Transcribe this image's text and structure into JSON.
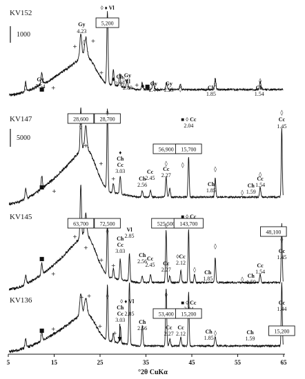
{
  "chart_data": {
    "type": "line",
    "xlabel": "°2θ CuKα",
    "xlim": [
      5,
      65
    ],
    "xticks": [
      "5",
      "15",
      "25",
      "35",
      "45",
      "55",
      "65"
    ],
    "legend_markers": [
      "◊",
      "♦",
      "■",
      "+"
    ],
    "scale_bars": [
      {
        "label": "1000"
      },
      {
        "label": "5000"
      }
    ],
    "patterns": [
      {
        "name": "KV152",
        "peaks": [
          {
            "x": 8.8,
            "h": 14,
            "w": 0.22
          },
          {
            "x": 12.3,
            "h": 18,
            "w": 0.22
          },
          {
            "x": 20.8,
            "h": 34,
            "w": 0.3
          },
          {
            "x": 21.9,
            "h": 26,
            "w": 0.35
          },
          {
            "x": 26.6,
            "h": 106,
            "w": 0.2
          },
          {
            "x": 27.9,
            "h": 22,
            "w": 0.22
          },
          {
            "x": 29.3,
            "h": 18,
            "w": 0.22
          },
          {
            "x": 30.9,
            "h": 12,
            "w": 0.22
          },
          {
            "x": 34.2,
            "h": 10,
            "w": 0.22
          },
          {
            "x": 36.6,
            "h": 12,
            "w": 0.22
          },
          {
            "x": 39.5,
            "h": 10,
            "w": 0.22
          },
          {
            "x": 42.5,
            "h": 8,
            "w": 0.22
          },
          {
            "x": 50.1,
            "h": 16,
            "w": 0.2
          },
          {
            "x": 59.9,
            "h": 12,
            "w": 0.2
          }
        ],
        "annotations": [
          {
            "text": "◊ ♦ Vl",
            "x": 26.6
          },
          {
            "text": "Gy",
            "x": 21.0
          },
          {
            "text": "4.23",
            "x": 21.0
          },
          {
            "text": "Gy",
            "x": 12.0
          },
          {
            "text": "7.54",
            "x": 12.0
          },
          {
            "text": "Ch",
            "x": 29.3
          },
          {
            "text": "2.99",
            "x": 29.3
          },
          {
            "text": "Gy",
            "x": 31.0
          },
          {
            "text": "Vl",
            "x": 31.0
          },
          {
            "text": "2.89",
            "x": 31.0
          },
          {
            "text": "Gy",
            "x": 36.7
          },
          {
            "text": "2.44",
            "x": 36.7
          },
          {
            "text": "Gy",
            "x": 40.0
          },
          {
            "text": "2.23",
            "x": 40.0
          },
          {
            "text": "Ch",
            "x": 49.2
          },
          {
            "text": "1.85",
            "x": 49.2
          },
          {
            "text": "Ch",
            "x": 59.7
          },
          {
            "text": "1.54",
            "x": 59.7
          }
        ],
        "boxed_counts": [
          {
            "text": "5,200",
            "x": 26.6
          }
        ]
      },
      {
        "name": "KV147",
        "peaks": [
          {
            "x": 8.8,
            "h": 14,
            "w": 0.22
          },
          {
            "x": 12.3,
            "h": 18,
            "w": 0.22
          },
          {
            "x": 20.8,
            "h": 62,
            "w": 0.2
          },
          {
            "x": 21.9,
            "h": 30,
            "w": 0.3
          },
          {
            "x": 26.6,
            "h": 118,
            "w": 0.18
          },
          {
            "x": 27.9,
            "h": 14,
            "w": 0.2
          },
          {
            "x": 29.4,
            "h": 26,
            "w": 0.22
          },
          {
            "x": 34.2,
            "h": 9,
            "w": 0.2
          },
          {
            "x": 36.0,
            "h": 10,
            "w": 0.2
          },
          {
            "x": 39.4,
            "h": 30,
            "w": 0.2
          },
          {
            "x": 40.2,
            "h": 12,
            "w": 0.2
          },
          {
            "x": 44.3,
            "h": 58,
            "w": 0.18
          },
          {
            "x": 50.1,
            "h": 28,
            "w": 0.18
          },
          {
            "x": 59.9,
            "h": 14,
            "w": 0.2
          },
          {
            "x": 64.6,
            "h": 100,
            "w": 0.16
          }
        ],
        "annotations": [
          {
            "text": "♦",
            "x": 29.4
          },
          {
            "text": "Ch",
            "x": 29.4
          },
          {
            "text": "Cc",
            "x": 29.4
          },
          {
            "text": "3.03",
            "x": 29.4
          },
          {
            "text": "Ch",
            "x": 34.2
          },
          {
            "text": "2.56",
            "x": 34.2
          },
          {
            "text": "Cc",
            "x": 35.9
          },
          {
            "text": "2.45",
            "x": 35.9
          },
          {
            "text": "Cc",
            "x": 39.4
          },
          {
            "text": "2.27",
            "x": 39.4
          },
          {
            "text": "■ ◊ Cc",
            "x": 44.3
          },
          {
            "text": "2.04",
            "x": 44.3
          },
          {
            "text": "Ch",
            "x": 49.2
          },
          {
            "text": "1.85",
            "x": 49.2
          },
          {
            "text": "Ch",
            "x": 57.9
          },
          {
            "text": "1.59",
            "x": 57.9
          },
          {
            "text": "Cc",
            "x": 59.9
          },
          {
            "text": "1.54",
            "x": 59.9
          },
          {
            "text": "Cc",
            "x": 64.6
          },
          {
            "text": "1.45",
            "x": 64.6
          }
        ],
        "boxed_counts": [
          {
            "text": "28,600",
            "x": 20.8
          },
          {
            "text": "28,700",
            "x": 26.6
          },
          {
            "text": "56,900",
            "x": 39.4
          },
          {
            "text": "15,700",
            "x": 44.3
          }
        ]
      },
      {
        "name": "KV145",
        "peaks": [
          {
            "x": 8.8,
            "h": 14,
            "w": 0.22
          },
          {
            "x": 12.3,
            "h": 16,
            "w": 0.22
          },
          {
            "x": 20.8,
            "h": 76,
            "w": 0.2
          },
          {
            "x": 21.9,
            "h": 28,
            "w": 0.3
          },
          {
            "x": 26.6,
            "h": 78,
            "w": 0.18
          },
          {
            "x": 27.9,
            "h": 14,
            "w": 0.2
          },
          {
            "x": 29.4,
            "h": 30,
            "w": 0.2
          },
          {
            "x": 31.4,
            "h": 40,
            "w": 0.18
          },
          {
            "x": 34.2,
            "h": 10,
            "w": 0.2
          },
          {
            "x": 36.0,
            "h": 12,
            "w": 0.2
          },
          {
            "x": 39.4,
            "h": 76,
            "w": 0.18
          },
          {
            "x": 40.2,
            "h": 10,
            "w": 0.2
          },
          {
            "x": 42.6,
            "h": 18,
            "w": 0.2
          },
          {
            "x": 44.3,
            "h": 78,
            "w": 0.16
          },
          {
            "x": 45.6,
            "h": 12,
            "w": 0.2
          },
          {
            "x": 50.1,
            "h": 36,
            "w": 0.18
          },
          {
            "x": 59.9,
            "h": 12,
            "w": 0.2
          },
          {
            "x": 64.6,
            "h": 86,
            "w": 0.16
          }
        ],
        "annotations": [
          {
            "text": "Ch",
            "x": 29.4
          },
          {
            "text": "Cc",
            "x": 29.4
          },
          {
            "text": "3.03",
            "x": 29.4
          },
          {
            "text": "Vl",
            "x": 31.4
          },
          {
            "text": "2.85",
            "x": 31.4
          },
          {
            "text": "Ch",
            "x": 34.2
          },
          {
            "text": "2.56",
            "x": 34.2
          },
          {
            "text": "Cc",
            "x": 35.9
          },
          {
            "text": "2.45",
            "x": 35.9
          },
          {
            "text": "Cc",
            "x": 39.4
          },
          {
            "text": "2.27",
            "x": 39.4
          },
          {
            "text": "◊Cc",
            "x": 42.6
          },
          {
            "text": "2.12",
            "x": 42.6
          },
          {
            "text": "■ ◊ Cc",
            "x": 44.3
          },
          {
            "text": "2.04",
            "x": 44.3
          },
          {
            "text": "Ch",
            "x": 48.5
          },
          {
            "text": "1.85",
            "x": 48.5
          },
          {
            "text": "Ch",
            "x": 57.9
          },
          {
            "text": "1.59",
            "x": 57.9
          },
          {
            "text": "Cc",
            "x": 59.9
          },
          {
            "text": "1.54",
            "x": 59.9
          },
          {
            "text": "Cc",
            "x": 64.6
          },
          {
            "text": "1.45",
            "x": 64.6
          }
        ],
        "boxed_counts": [
          {
            "text": "63,700",
            "x": 20.8
          },
          {
            "text": "72,500",
            "x": 26.6
          },
          {
            "text": "525,500",
            "x": 39.4
          },
          {
            "text": "143,700",
            "x": 44.3
          },
          {
            "text": "48,100",
            "x": 64.6
          }
        ]
      },
      {
        "name": "KV136",
        "peaks": [
          {
            "x": 8.8,
            "h": 12,
            "w": 0.22
          },
          {
            "x": 12.3,
            "h": 14,
            "w": 0.22
          },
          {
            "x": 20.8,
            "h": 30,
            "w": 0.3
          },
          {
            "x": 21.9,
            "h": 20,
            "w": 0.35
          },
          {
            "x": 26.6,
            "h": 82,
            "w": 0.18
          },
          {
            "x": 27.9,
            "h": 12,
            "w": 0.2
          },
          {
            "x": 29.4,
            "h": 24,
            "w": 0.2
          },
          {
            "x": 31.4,
            "h": 92,
            "w": 0.18
          },
          {
            "x": 34.2,
            "h": 30,
            "w": 0.2
          },
          {
            "x": 39.4,
            "h": 84,
            "w": 0.18
          },
          {
            "x": 40.2,
            "h": 10,
            "w": 0.2
          },
          {
            "x": 42.6,
            "h": 12,
            "w": 0.2
          },
          {
            "x": 44.3,
            "h": 78,
            "w": 0.16
          },
          {
            "x": 50.1,
            "h": 14,
            "w": 0.2
          },
          {
            "x": 64.6,
            "h": 92,
            "w": 0.16
          }
        ],
        "annotations": [
          {
            "text": "◊ ♦ Vl",
            "x": 30.9
          },
          {
            "text": "Ch",
            "x": 29.4
          },
          {
            "text": "Cc",
            "x": 29.4
          },
          {
            "text": "3.03",
            "x": 29.4
          },
          {
            "text": "2.85",
            "x": 31.4
          },
          {
            "text": "Ch",
            "x": 34.2
          },
          {
            "text": "2.56",
            "x": 34.2
          },
          {
            "text": "Cc",
            "x": 40.0
          },
          {
            "text": "2.27",
            "x": 40.0
          },
          {
            "text": "Cc",
            "x": 42.6
          },
          {
            "text": "2.12",
            "x": 42.6
          },
          {
            "text": "■ ◊ Cc",
            "x": 44.3
          },
          {
            "text": "2.04",
            "x": 44.3
          },
          {
            "text": "Ch",
            "x": 48.7
          },
          {
            "text": "1.85",
            "x": 48.7
          },
          {
            "text": "Ch",
            "x": 57.7
          },
          {
            "text": "1.59",
            "x": 57.7
          },
          {
            "text": "Cc",
            "x": 64.6
          },
          {
            "text": "1.44",
            "x": 64.6
          }
        ],
        "boxed_counts": [
          {
            "text": "53,400",
            "x": 39.4
          },
          {
            "text": "15,200",
            "x": 44.3
          },
          {
            "text": "15,200",
            "x": 64.6
          }
        ]
      }
    ]
  }
}
